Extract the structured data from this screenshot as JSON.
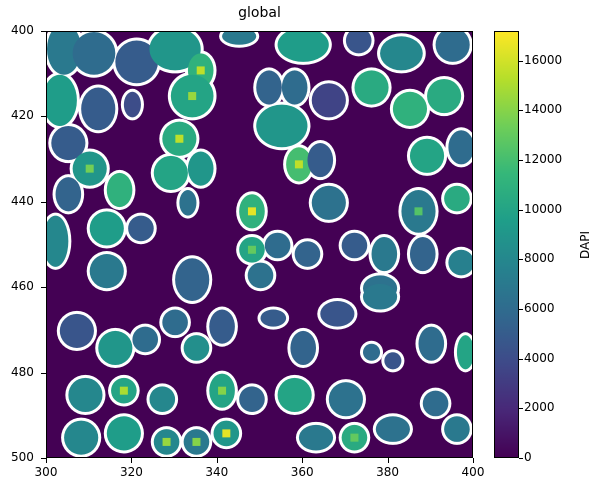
{
  "chart_data": {
    "type": "heatmap",
    "title": "global",
    "xlabel": "",
    "ylabel": "",
    "xlim": [
      300,
      400
    ],
    "ylim": [
      500,
      400
    ],
    "xticks": [
      300,
      320,
      340,
      360,
      380,
      400
    ],
    "yticks": [
      400,
      420,
      440,
      460,
      480,
      500
    ],
    "colormap": "viridis",
    "colorbar": {
      "label": "DAPI",
      "range": [
        0,
        17200
      ],
      "ticks": [
        0,
        2000,
        4000,
        6000,
        8000,
        10000,
        12000,
        14000,
        16000
      ]
    },
    "overlay": "white cell segmentation boundaries",
    "background_value": 0,
    "cells": [
      {
        "x": 304,
        "y": 404,
        "rx": 4,
        "ry": 6,
        "v": 7000
      },
      {
        "x": 311,
        "y": 405,
        "rx": 5,
        "ry": 5,
        "v": 6000
      },
      {
        "x": 321,
        "y": 407,
        "rx": 5,
        "ry": 5,
        "v": 5000
      },
      {
        "x": 330,
        "y": 404,
        "rx": 6,
        "ry": 5,
        "v": 9000
      },
      {
        "x": 336,
        "y": 409,
        "rx": 3,
        "ry": 4,
        "v": 11000,
        "spot": 15500
      },
      {
        "x": 345,
        "y": 401,
        "rx": 4,
        "ry": 2,
        "v": 7000
      },
      {
        "x": 360,
        "y": 403,
        "rx": 6,
        "ry": 4,
        "v": 9500
      },
      {
        "x": 373,
        "y": 402,
        "rx": 3,
        "ry": 3,
        "v": 4500
      },
      {
        "x": 383,
        "y": 405,
        "rx": 5,
        "ry": 4,
        "v": 8000
      },
      {
        "x": 395,
        "y": 403,
        "rx": 4,
        "ry": 4,
        "v": 6000
      },
      {
        "x": 303,
        "y": 416,
        "rx": 4,
        "ry": 6,
        "v": 9500
      },
      {
        "x": 312,
        "y": 418,
        "rx": 4,
        "ry": 5,
        "v": 5000
      },
      {
        "x": 320,
        "y": 417,
        "rx": 2,
        "ry": 3,
        "v": 4000
      },
      {
        "x": 334,
        "y": 415,
        "rx": 5,
        "ry": 5,
        "v": 10000,
        "spot": 14500
      },
      {
        "x": 352,
        "y": 413,
        "rx": 3,
        "ry": 4,
        "v": 5500
      },
      {
        "x": 358,
        "y": 413,
        "rx": 3,
        "ry": 4,
        "v": 6000
      },
      {
        "x": 366,
        "y": 416,
        "rx": 4,
        "ry": 4,
        "v": 3500
      },
      {
        "x": 376,
        "y": 413,
        "rx": 4,
        "ry": 4,
        "v": 10500
      },
      {
        "x": 385,
        "y": 418,
        "rx": 4,
        "ry": 4,
        "v": 11000
      },
      {
        "x": 393,
        "y": 415,
        "rx": 4,
        "ry": 4,
        "v": 10500
      },
      {
        "x": 305,
        "y": 426,
        "rx": 4,
        "ry": 4,
        "v": 5000
      },
      {
        "x": 331,
        "y": 425,
        "rx": 4,
        "ry": 4,
        "v": 10500,
        "spot": 15500
      },
      {
        "x": 355,
        "y": 422,
        "rx": 6,
        "ry": 5,
        "v": 9000
      },
      {
        "x": 359,
        "y": 431,
        "rx": 3,
        "ry": 4,
        "v": 12000,
        "spot": 15500
      },
      {
        "x": 364,
        "y": 430,
        "rx": 3,
        "ry": 4,
        "v": 5000
      },
      {
        "x": 389,
        "y": 429,
        "rx": 4,
        "ry": 4,
        "v": 10000
      },
      {
        "x": 397,
        "y": 427,
        "rx": 3,
        "ry": 4,
        "v": 6000
      },
      {
        "x": 310,
        "y": 432,
        "rx": 4,
        "ry": 4,
        "v": 9000,
        "spot": 13500
      },
      {
        "x": 329,
        "y": 433,
        "rx": 4,
        "ry": 4,
        "v": 10000
      },
      {
        "x": 336,
        "y": 432,
        "rx": 3,
        "ry": 4,
        "v": 9000
      },
      {
        "x": 305,
        "y": 438,
        "rx": 3,
        "ry": 4,
        "v": 5500
      },
      {
        "x": 317,
        "y": 437,
        "rx": 3,
        "ry": 4,
        "v": 11000
      },
      {
        "x": 333,
        "y": 440,
        "rx": 2,
        "ry": 3,
        "v": 6500
      },
      {
        "x": 348,
        "y": 442,
        "rx": 3,
        "ry": 4,
        "v": 11000,
        "spot": 16500
      },
      {
        "x": 366,
        "y": 440,
        "rx": 4,
        "ry": 4,
        "v": 6500
      },
      {
        "x": 387,
        "y": 442,
        "rx": 4,
        "ry": 5,
        "v": 7000,
        "spot": 12500
      },
      {
        "x": 396,
        "y": 439,
        "rx": 3,
        "ry": 3,
        "v": 10500
      },
      {
        "x": 314,
        "y": 446,
        "rx": 4,
        "ry": 4,
        "v": 9500
      },
      {
        "x": 322,
        "y": 446,
        "rx": 3,
        "ry": 3,
        "v": 5000
      },
      {
        "x": 302,
        "y": 449,
        "rx": 3,
        "ry": 6,
        "v": 8000
      },
      {
        "x": 348,
        "y": 451,
        "rx": 3,
        "ry": 3,
        "v": 10000,
        "spot": 13000
      },
      {
        "x": 354,
        "y": 450,
        "rx": 3,
        "ry": 3,
        "v": 6000
      },
      {
        "x": 361,
        "y": 452,
        "rx": 3,
        "ry": 3,
        "v": 5500
      },
      {
        "x": 372,
        "y": 450,
        "rx": 3,
        "ry": 3,
        "v": 5000
      },
      {
        "x": 379,
        "y": 452,
        "rx": 3,
        "ry": 4,
        "v": 7000
      },
      {
        "x": 388,
        "y": 452,
        "rx": 3,
        "ry": 4,
        "v": 5500
      },
      {
        "x": 397,
        "y": 454,
        "rx": 3,
        "ry": 3,
        "v": 7500
      },
      {
        "x": 314,
        "y": 456,
        "rx": 4,
        "ry": 4,
        "v": 7000
      },
      {
        "x": 350,
        "y": 457,
        "rx": 3,
        "ry": 3,
        "v": 6500
      },
      {
        "x": 334,
        "y": 458,
        "rx": 4,
        "ry": 5,
        "v": 5500
      },
      {
        "x": 378,
        "y": 460,
        "rx": 4,
        "ry": 3,
        "v": 6500
      },
      {
        "x": 307,
        "y": 470,
        "rx": 4,
        "ry": 4,
        "v": 4500
      },
      {
        "x": 316,
        "y": 474,
        "rx": 4,
        "ry": 4,
        "v": 9000
      },
      {
        "x": 323,
        "y": 472,
        "rx": 3,
        "ry": 3,
        "v": 6000
      },
      {
        "x": 330,
        "y": 468,
        "rx": 3,
        "ry": 3,
        "v": 6000
      },
      {
        "x": 335,
        "y": 474,
        "rx": 3,
        "ry": 3,
        "v": 8500
      },
      {
        "x": 341,
        "y": 469,
        "rx": 3,
        "ry": 4,
        "v": 5000
      },
      {
        "x": 353,
        "y": 467,
        "rx": 3,
        "ry": 2,
        "v": 5000
      },
      {
        "x": 360,
        "y": 474,
        "rx": 3,
        "ry": 4,
        "v": 5500
      },
      {
        "x": 368,
        "y": 466,
        "rx": 4,
        "ry": 3,
        "v": 4500
      },
      {
        "x": 378,
        "y": 462,
        "rx": 4,
        "ry": 3,
        "v": 7000
      },
      {
        "x": 376,
        "y": 475,
        "rx": 2,
        "ry": 2,
        "v": 6000
      },
      {
        "x": 381,
        "y": 477,
        "rx": 2,
        "ry": 2,
        "v": 4500
      },
      {
        "x": 390,
        "y": 473,
        "rx": 3,
        "ry": 4,
        "v": 6000
      },
      {
        "x": 398,
        "y": 475,
        "rx": 2,
        "ry": 4,
        "v": 10000
      },
      {
        "x": 309,
        "y": 485,
        "rx": 4,
        "ry": 4,
        "v": 8000
      },
      {
        "x": 318,
        "y": 484,
        "rx": 3,
        "ry": 3,
        "v": 10000,
        "spot": 15000
      },
      {
        "x": 327,
        "y": 486,
        "rx": 3,
        "ry": 3,
        "v": 8000
      },
      {
        "x": 341,
        "y": 484,
        "rx": 3,
        "ry": 4,
        "v": 10000,
        "spot": 14000
      },
      {
        "x": 348,
        "y": 486,
        "rx": 3,
        "ry": 3,
        "v": 5500
      },
      {
        "x": 358,
        "y": 485,
        "rx": 4,
        "ry": 4,
        "v": 10000
      },
      {
        "x": 370,
        "y": 486,
        "rx": 4,
        "ry": 4,
        "v": 6500
      },
      {
        "x": 391,
        "y": 487,
        "rx": 3,
        "ry": 3,
        "v": 6000
      },
      {
        "x": 308,
        "y": 495,
        "rx": 4,
        "ry": 4,
        "v": 8000
      },
      {
        "x": 318,
        "y": 494,
        "rx": 4,
        "ry": 4,
        "v": 9500
      },
      {
        "x": 328,
        "y": 496,
        "rx": 3,
        "ry": 3,
        "v": 8000,
        "spot": 14500
      },
      {
        "x": 335,
        "y": 496,
        "rx": 3,
        "ry": 3,
        "v": 7000,
        "spot": 14000
      },
      {
        "x": 342,
        "y": 494,
        "rx": 3,
        "ry": 3,
        "v": 9000,
        "spot": 16500
      },
      {
        "x": 363,
        "y": 495,
        "rx": 4,
        "ry": 3,
        "v": 7000
      },
      {
        "x": 372,
        "y": 495,
        "rx": 3,
        "ry": 3,
        "v": 10500,
        "spot": 13000
      },
      {
        "x": 381,
        "y": 493,
        "rx": 4,
        "ry": 3,
        "v": 6500
      },
      {
        "x": 396,
        "y": 493,
        "rx": 3,
        "ry": 3,
        "v": 7000
      }
    ]
  }
}
